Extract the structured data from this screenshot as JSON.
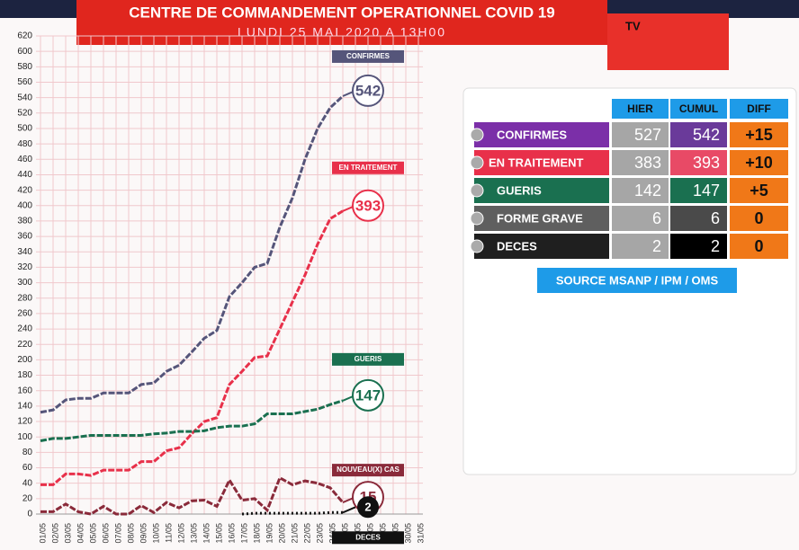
{
  "header": {
    "title": "CENTRE DE COMMANDEMENT OPERATIONNEL COVID 19",
    "subtitle": "LUNDI 25 MAI 2020 A 13H00",
    "logo": "TV"
  },
  "chart_data": {
    "type": "line",
    "categories": [
      "01/05",
      "02/05",
      "03/05",
      "04/05",
      "05/05",
      "06/05",
      "07/05",
      "08/05",
      "09/05",
      "10/05",
      "11/05",
      "12/05",
      "13/05",
      "14/05",
      "15/05",
      "16/05",
      "17/05",
      "18/05",
      "19/05",
      "20/05",
      "21/05",
      "22/05",
      "23/05",
      "24/05",
      "25/05",
      "26/05",
      "27/05",
      "28/05",
      "29/05",
      "30/05",
      "31/05"
    ],
    "ylim": [
      0,
      620
    ],
    "yticks": [
      0,
      20,
      40,
      60,
      80,
      100,
      120,
      140,
      160,
      180,
      200,
      220,
      240,
      260,
      280,
      300,
      320,
      340,
      360,
      380,
      400,
      420,
      440,
      460,
      480,
      500,
      520,
      540,
      560,
      580,
      600,
      620
    ],
    "grid": true,
    "series": [
      {
        "name": "CONFIRMES",
        "color": "#55557a",
        "values": [
          132,
          135,
          148,
          150,
          150,
          157,
          157,
          157,
          168,
          170,
          185,
          193,
          210,
          228,
          238,
          282,
          300,
          320,
          325,
          372,
          410,
          460,
          500,
          527,
          542,
          null,
          null,
          null,
          null,
          null,
          null
        ]
      },
      {
        "name": "EN TRAITEMENT",
        "color": "#e8304a",
        "values": [
          38,
          38,
          52,
          52,
          50,
          57,
          57,
          57,
          68,
          68,
          82,
          86,
          104,
          120,
          125,
          168,
          185,
          203,
          205,
          240,
          275,
          310,
          350,
          383,
          393,
          null,
          null,
          null,
          null,
          null,
          null
        ]
      },
      {
        "name": "GUERIS",
        "color": "#1a7050",
        "values": [
          95,
          98,
          98,
          100,
          102,
          102,
          102,
          102,
          102,
          104,
          105,
          107,
          107,
          108,
          112,
          114,
          114,
          117,
          130,
          130,
          130,
          133,
          136,
          142,
          147,
          null,
          null,
          null,
          null,
          null,
          null
        ]
      },
      {
        "name": "NOUVEAU(X) CAS",
        "color": "#8a2a3a",
        "values": [
          3,
          3,
          13,
          3,
          0,
          10,
          0,
          0,
          11,
          2,
          15,
          8,
          17,
          18,
          10,
          44,
          18,
          20,
          5,
          47,
          38,
          43,
          40,
          34,
          15,
          null,
          null,
          null,
          null,
          null,
          null
        ]
      },
      {
        "name": "DECES",
        "color": "#111111",
        "values": [
          null,
          null,
          null,
          null,
          null,
          null,
          null,
          null,
          null,
          null,
          null,
          null,
          null,
          null,
          null,
          null,
          0,
          1,
          1,
          1,
          1,
          1,
          1,
          2,
          2,
          null,
          null,
          null,
          null,
          null,
          null
        ]
      }
    ]
  },
  "table": {
    "columns": [
      "HIER",
      "CUMUL",
      "DIFF"
    ],
    "rows": [
      {
        "label": "CONFIRMES",
        "hier": 527,
        "cumul": 542,
        "diff": "+15"
      },
      {
        "label": "EN TRAITEMENT",
        "hier": 383,
        "cumul": 393,
        "diff": "+10"
      },
      {
        "label": "GUERIS",
        "hier": 142,
        "cumul": 147,
        "diff": "+5"
      },
      {
        "label": "FORME GRAVE",
        "hier": 6,
        "cumul": 6,
        "diff": 0
      },
      {
        "label": "DECES",
        "hier": 2,
        "cumul": 2,
        "diff": 0
      }
    ]
  },
  "source": "SOURCE MSANP / IPM / OMS"
}
